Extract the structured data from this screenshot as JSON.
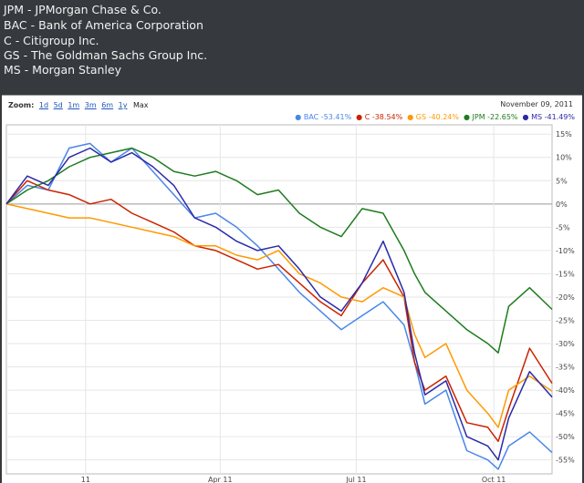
{
  "header": {
    "lines": [
      "JPM - JPMorgan Chase & Co.",
      "BAC - Bank of America Corporation",
      "C - Citigroup Inc.",
      "GS - The Goldman Sachs Group Inc.",
      "MS - Morgan Stanley"
    ]
  },
  "zoom": {
    "label": "Zoom:",
    "options": [
      "1d",
      "5d",
      "1m",
      "3m",
      "6m",
      "1y",
      "Max"
    ]
  },
  "date_label": "November 09, 2011",
  "chart_data": {
    "type": "line",
    "ylim": [
      -58,
      17
    ],
    "y_ticks": [
      "15%",
      "10%",
      "5%",
      "0%",
      "-5%",
      "-10%",
      "-15%",
      "-20%",
      "-25%",
      "-30%",
      "-35%",
      "-40%",
      "-45%",
      "-50%",
      "-55%"
    ],
    "y_tick_values": [
      15,
      10,
      5,
      0,
      -5,
      -10,
      -15,
      -20,
      -25,
      -30,
      -35,
      -40,
      -45,
      -50,
      -55
    ],
    "x_ticks": [
      "11",
      "Apr 11",
      "Jul 11",
      "Oct 11"
    ],
    "x_tick_dates": [
      "2011-01-01",
      "2011-04-01",
      "2011-07-01",
      "2011-10-01"
    ],
    "grid": true,
    "legend_position": "top-right",
    "series": [
      {
        "name": "BAC",
        "label": "BAC -53.41%",
        "color": "#4a86e8",
        "x": [
          "2010-11-09",
          "2010-11-23",
          "2010-12-07",
          "2010-12-21",
          "2011-01-04",
          "2011-01-18",
          "2011-02-01",
          "2011-02-15",
          "2011-03-01",
          "2011-03-15",
          "2011-03-29",
          "2011-04-12",
          "2011-04-26",
          "2011-05-10",
          "2011-05-24",
          "2011-06-07",
          "2011-06-21",
          "2011-07-05",
          "2011-07-19",
          "2011-08-02",
          "2011-08-09",
          "2011-08-16",
          "2011-08-30",
          "2011-09-13",
          "2011-09-27",
          "2011-10-04",
          "2011-10-11",
          "2011-10-25",
          "2011-11-09"
        ],
        "values": [
          0,
          4,
          3,
          12,
          13,
          9,
          12,
          7,
          2,
          -3,
          -2,
          -5,
          -9,
          -14,
          -19,
          -23,
          -27,
          -24,
          -21,
          -26,
          -34,
          -43,
          -40,
          -53,
          -55,
          -57,
          -52,
          -49,
          -53.41
        ]
      },
      {
        "name": "C",
        "label": "C -38.54%",
        "color": "#cc2200",
        "x": [
          "2010-11-09",
          "2010-11-23",
          "2010-12-07",
          "2010-12-21",
          "2011-01-04",
          "2011-01-18",
          "2011-02-01",
          "2011-02-15",
          "2011-03-01",
          "2011-03-15",
          "2011-03-29",
          "2011-04-12",
          "2011-04-26",
          "2011-05-10",
          "2011-05-24",
          "2011-06-07",
          "2011-06-21",
          "2011-07-05",
          "2011-07-19",
          "2011-08-02",
          "2011-08-09",
          "2011-08-16",
          "2011-08-30",
          "2011-09-13",
          "2011-09-27",
          "2011-10-04",
          "2011-10-11",
          "2011-10-25",
          "2011-11-09"
        ],
        "values": [
          0,
          5,
          3,
          2,
          0,
          1,
          -2,
          -4,
          -6,
          -9,
          -10,
          -12,
          -14,
          -13,
          -17,
          -21,
          -24,
          -17,
          -12,
          -20,
          -34,
          -40,
          -37,
          -47,
          -48,
          -51,
          -44,
          -31,
          -38.54
        ]
      },
      {
        "name": "GS",
        "label": "GS -40.24%",
        "color": "#ff9900",
        "x": [
          "2010-11-09",
          "2010-11-23",
          "2010-12-07",
          "2010-12-21",
          "2011-01-04",
          "2011-01-18",
          "2011-02-01",
          "2011-02-15",
          "2011-03-01",
          "2011-03-15",
          "2011-03-29",
          "2011-04-12",
          "2011-04-26",
          "2011-05-10",
          "2011-05-24",
          "2011-06-07",
          "2011-06-21",
          "2011-07-05",
          "2011-07-19",
          "2011-08-02",
          "2011-08-09",
          "2011-08-16",
          "2011-08-30",
          "2011-09-13",
          "2011-09-27",
          "2011-10-04",
          "2011-10-11",
          "2011-10-25",
          "2011-11-09"
        ],
        "values": [
          0,
          -1,
          -2,
          -3,
          -3,
          -4,
          -5,
          -6,
          -7,
          -9,
          -9,
          -11,
          -12,
          -10,
          -15,
          -17,
          -20,
          -21,
          -18,
          -20,
          -28,
          -33,
          -30,
          -40,
          -45,
          -48,
          -40,
          -37,
          -40.24
        ]
      },
      {
        "name": "JPM",
        "label": "JPM -22.65%",
        "color": "#1e7b1e",
        "x": [
          "2010-11-09",
          "2010-11-23",
          "2010-12-07",
          "2010-12-21",
          "2011-01-04",
          "2011-01-18",
          "2011-02-01",
          "2011-02-15",
          "2011-03-01",
          "2011-03-15",
          "2011-03-29",
          "2011-04-12",
          "2011-04-26",
          "2011-05-10",
          "2011-05-24",
          "2011-06-07",
          "2011-06-21",
          "2011-07-05",
          "2011-07-19",
          "2011-08-02",
          "2011-08-09",
          "2011-08-16",
          "2011-08-30",
          "2011-09-13",
          "2011-09-27",
          "2011-10-04",
          "2011-10-11",
          "2011-10-25",
          "2011-11-09"
        ],
        "values": [
          0,
          3,
          5,
          8,
          10,
          11,
          12,
          10,
          7,
          6,
          7,
          5,
          2,
          3,
          -2,
          -5,
          -7,
          -1,
          -2,
          -10,
          -15,
          -19,
          -23,
          -27,
          -30,
          -32,
          -22,
          -18,
          -22.65
        ]
      },
      {
        "name": "MS",
        "label": "MS -41.49%",
        "color": "#2a2aa8",
        "x": [
          "2010-11-09",
          "2010-11-23",
          "2010-12-07",
          "2010-12-21",
          "2011-01-04",
          "2011-01-18",
          "2011-02-01",
          "2011-02-15",
          "2011-03-01",
          "2011-03-15",
          "2011-03-29",
          "2011-04-12",
          "2011-04-26",
          "2011-05-10",
          "2011-05-24",
          "2011-06-07",
          "2011-06-21",
          "2011-07-05",
          "2011-07-19",
          "2011-08-02",
          "2011-08-09",
          "2011-08-16",
          "2011-08-30",
          "2011-09-13",
          "2011-09-27",
          "2011-10-04",
          "2011-10-11",
          "2011-10-25",
          "2011-11-09"
        ],
        "values": [
          0,
          6,
          4,
          10,
          12,
          9,
          11,
          8,
          4,
          -3,
          -5,
          -8,
          -10,
          -9,
          -14,
          -20,
          -23,
          -17,
          -8,
          -19,
          -32,
          -41,
          -38,
          -50,
          -52,
          -55,
          -46,
          -36,
          -41.49
        ]
      }
    ]
  }
}
